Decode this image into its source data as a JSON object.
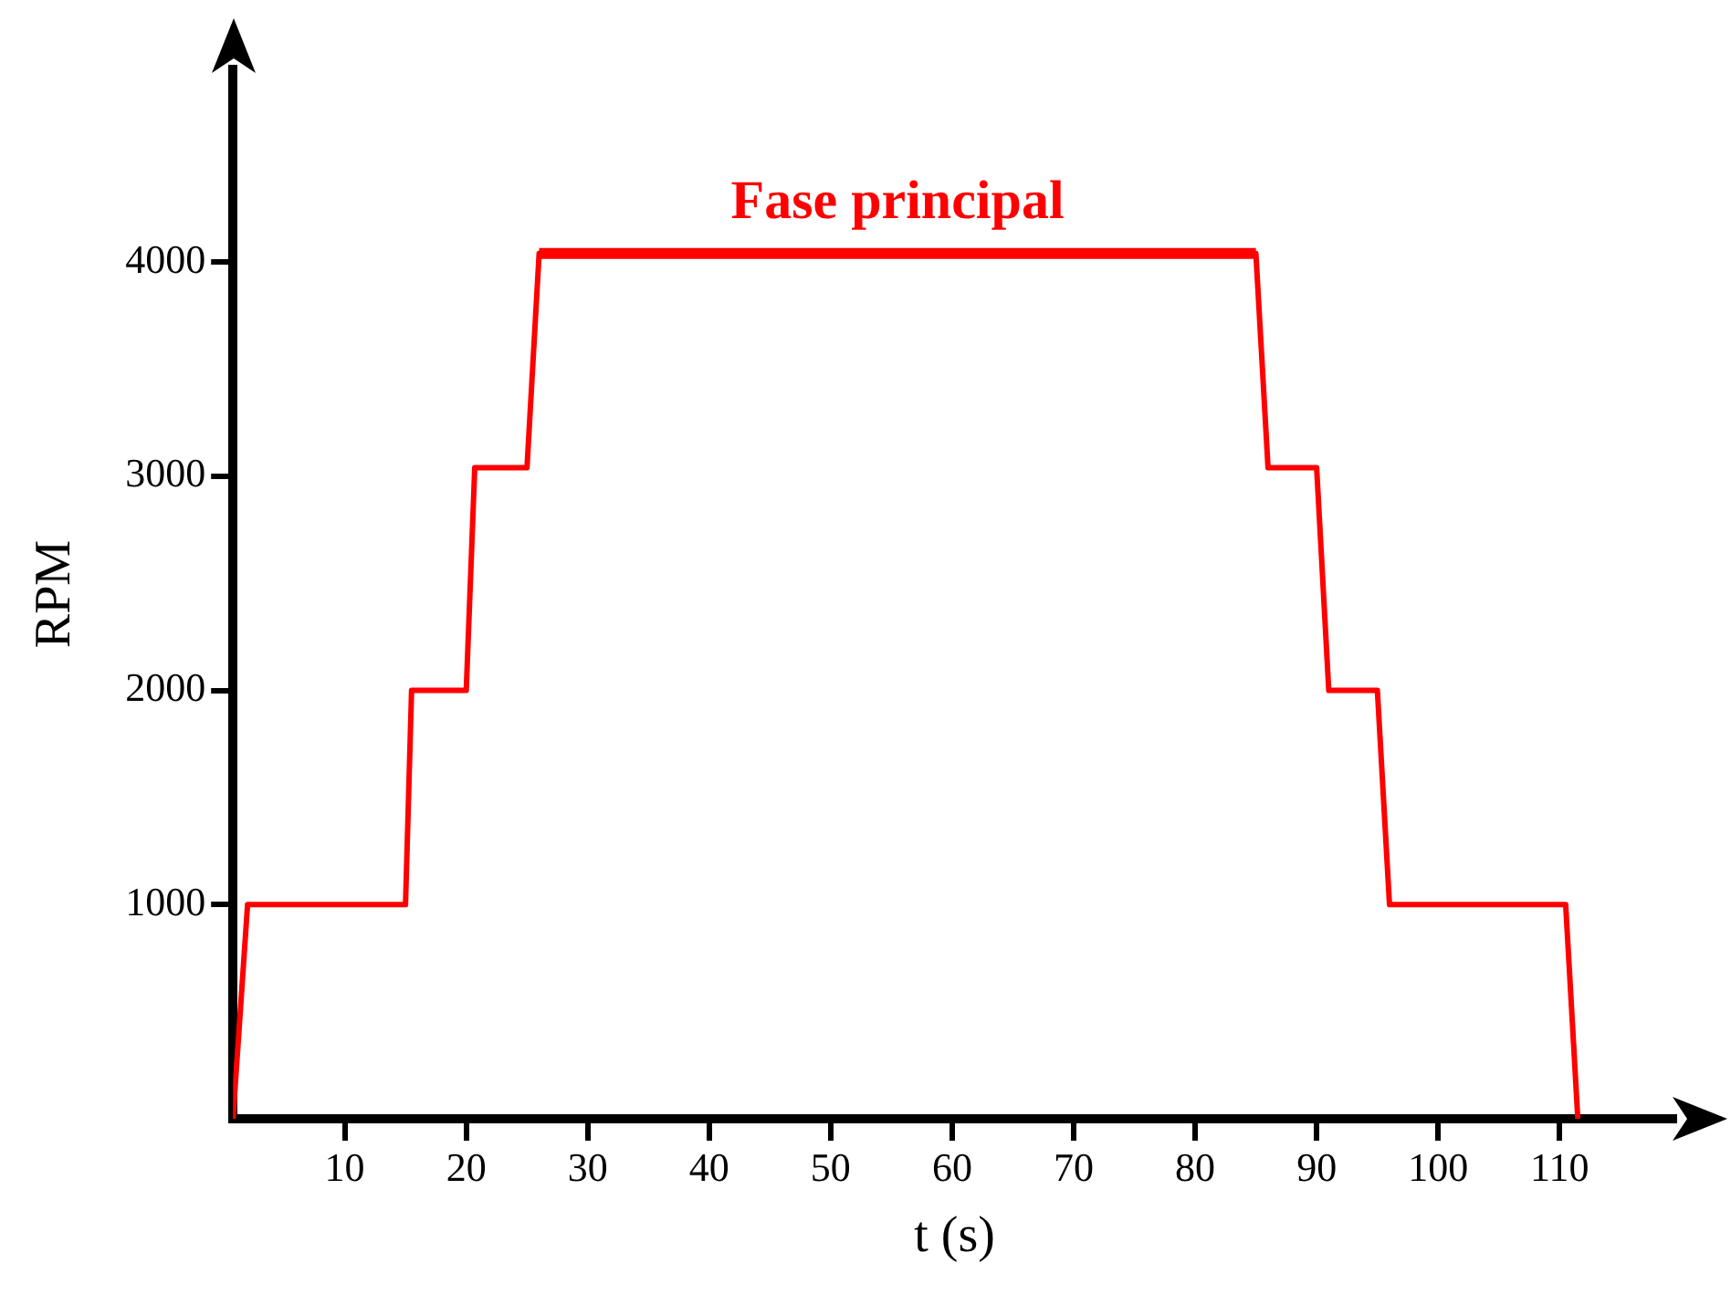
{
  "chart_data": {
    "type": "line",
    "xlabel": "t (s)",
    "ylabel": "RPM",
    "xlim": [
      0.8,
      119.6
    ],
    "ylim": [
      0,
      4900
    ],
    "xticks": [
      10,
      20,
      30,
      40,
      50,
      60,
      70,
      80,
      90,
      100,
      110
    ],
    "yticks": [
      1000,
      2000,
      3000,
      4000
    ],
    "grid": false,
    "legend": false,
    "marker": "none",
    "line_style": "solid",
    "series": [
      {
        "color": "#ff0000",
        "x": [
          0.8,
          2,
          15,
          15.5,
          20,
          20.7,
          25,
          26,
          85,
          86,
          90,
          91,
          95,
          96,
          110.5,
          111.5
        ],
        "values": [
          0,
          1000,
          1000,
          2000,
          2000,
          3040,
          3040,
          4040,
          4040,
          3040,
          3040,
          2000,
          2000,
          1000,
          1000,
          0
        ]
      },
      {
        "color": "#ff0000",
        "x": [
          26,
          85
        ],
        "values": [
          4040,
          4040
        ]
      }
    ],
    "annotations": [
      {
        "text": "Fase principal",
        "x": 55.5,
        "y": 4040
      }
    ]
  }
}
